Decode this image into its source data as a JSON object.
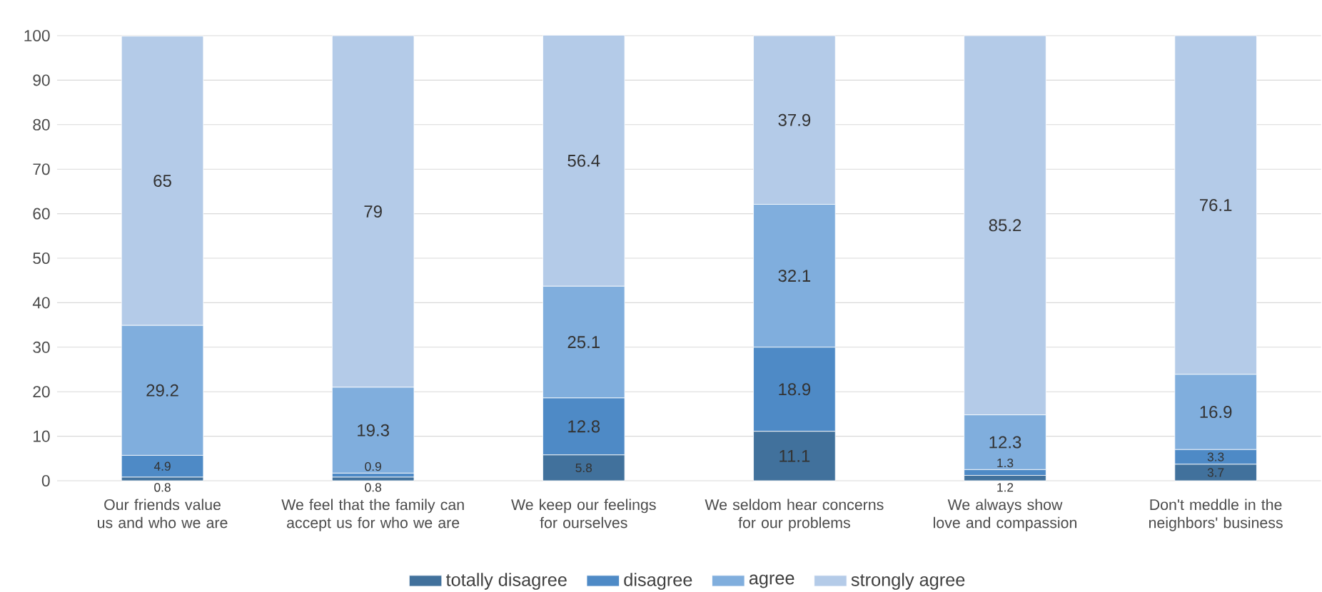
{
  "chart_data": {
    "type": "bar",
    "stacked": true,
    "categories": [
      "Our friends value us and who we are",
      "We feel that the family can accept us for who we are",
      "We keep our feelings for ourselves",
      "We seldom hear concerns for our problems",
      "We always show love and compassion",
      "Don't meddle in the neighbors' business"
    ],
    "series": [
      {
        "name": "totally disagree",
        "color": "#41719c",
        "values": [
          0.8,
          0.8,
          5.8,
          11.1,
          1.2,
          3.7
        ]
      },
      {
        "name": "disagree",
        "color": "#4e8ac6",
        "values": [
          4.9,
          0.9,
          12.8,
          18.9,
          1.3,
          3.3
        ]
      },
      {
        "name": "agree",
        "color": "#80aedd",
        "values": [
          29.2,
          19.3,
          25.1,
          32.1,
          12.3,
          16.9
        ]
      },
      {
        "name": "strongly agree",
        "color": "#b4cbe8",
        "values": [
          65,
          79,
          56.4,
          37.9,
          85.2,
          76.1
        ]
      }
    ],
    "ylim": [
      0,
      100
    ],
    "yticks": [
      0,
      10,
      20,
      30,
      40,
      50,
      60,
      70,
      80,
      90,
      100
    ],
    "grid": "y",
    "legend": "bottom",
    "data_labels": true
  }
}
